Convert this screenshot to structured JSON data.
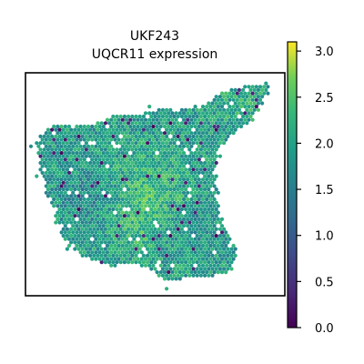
{
  "chart_data": {
    "type": "heatmap",
    "subtype": "spatial-hex-scatter",
    "title_line1": "UKF243",
    "title_line2": "UQCR11 expression",
    "axes": {
      "visible_ticks": false,
      "frame": true
    },
    "colormap": "viridis",
    "color_range": [
      0.0,
      3.1
    ],
    "colorbar": {
      "placement": "right",
      "ticks": [
        0.0,
        0.5,
        1.0,
        1.5,
        2.0,
        2.5,
        3.0
      ],
      "tick_labels": [
        "0.0",
        "0.5",
        "1.0",
        "1.5",
        "2.0",
        "2.5",
        "3.0"
      ]
    },
    "typical_value_range": [
      1.4,
      2.6
    ]
  }
}
